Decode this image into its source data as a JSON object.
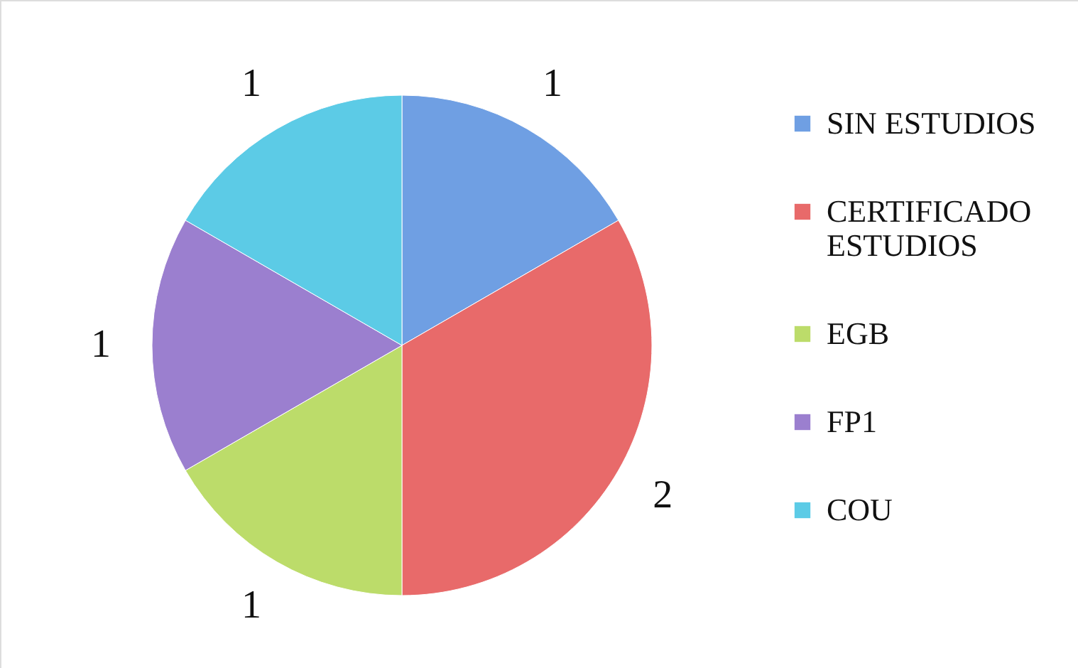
{
  "chart_data": {
    "type": "pie",
    "categories": [
      "SIN ESTUDIOS",
      "CERTIFICADO ESTUDIOS",
      "EGB",
      "FP1",
      "COU"
    ],
    "values": [
      1,
      2,
      1,
      1,
      1
    ],
    "colors": [
      "#6f9fe3",
      "#e86a6a",
      "#bcdc6a",
      "#9b7fcf",
      "#5ccbe6"
    ],
    "data_labels": true,
    "legend": "right"
  }
}
